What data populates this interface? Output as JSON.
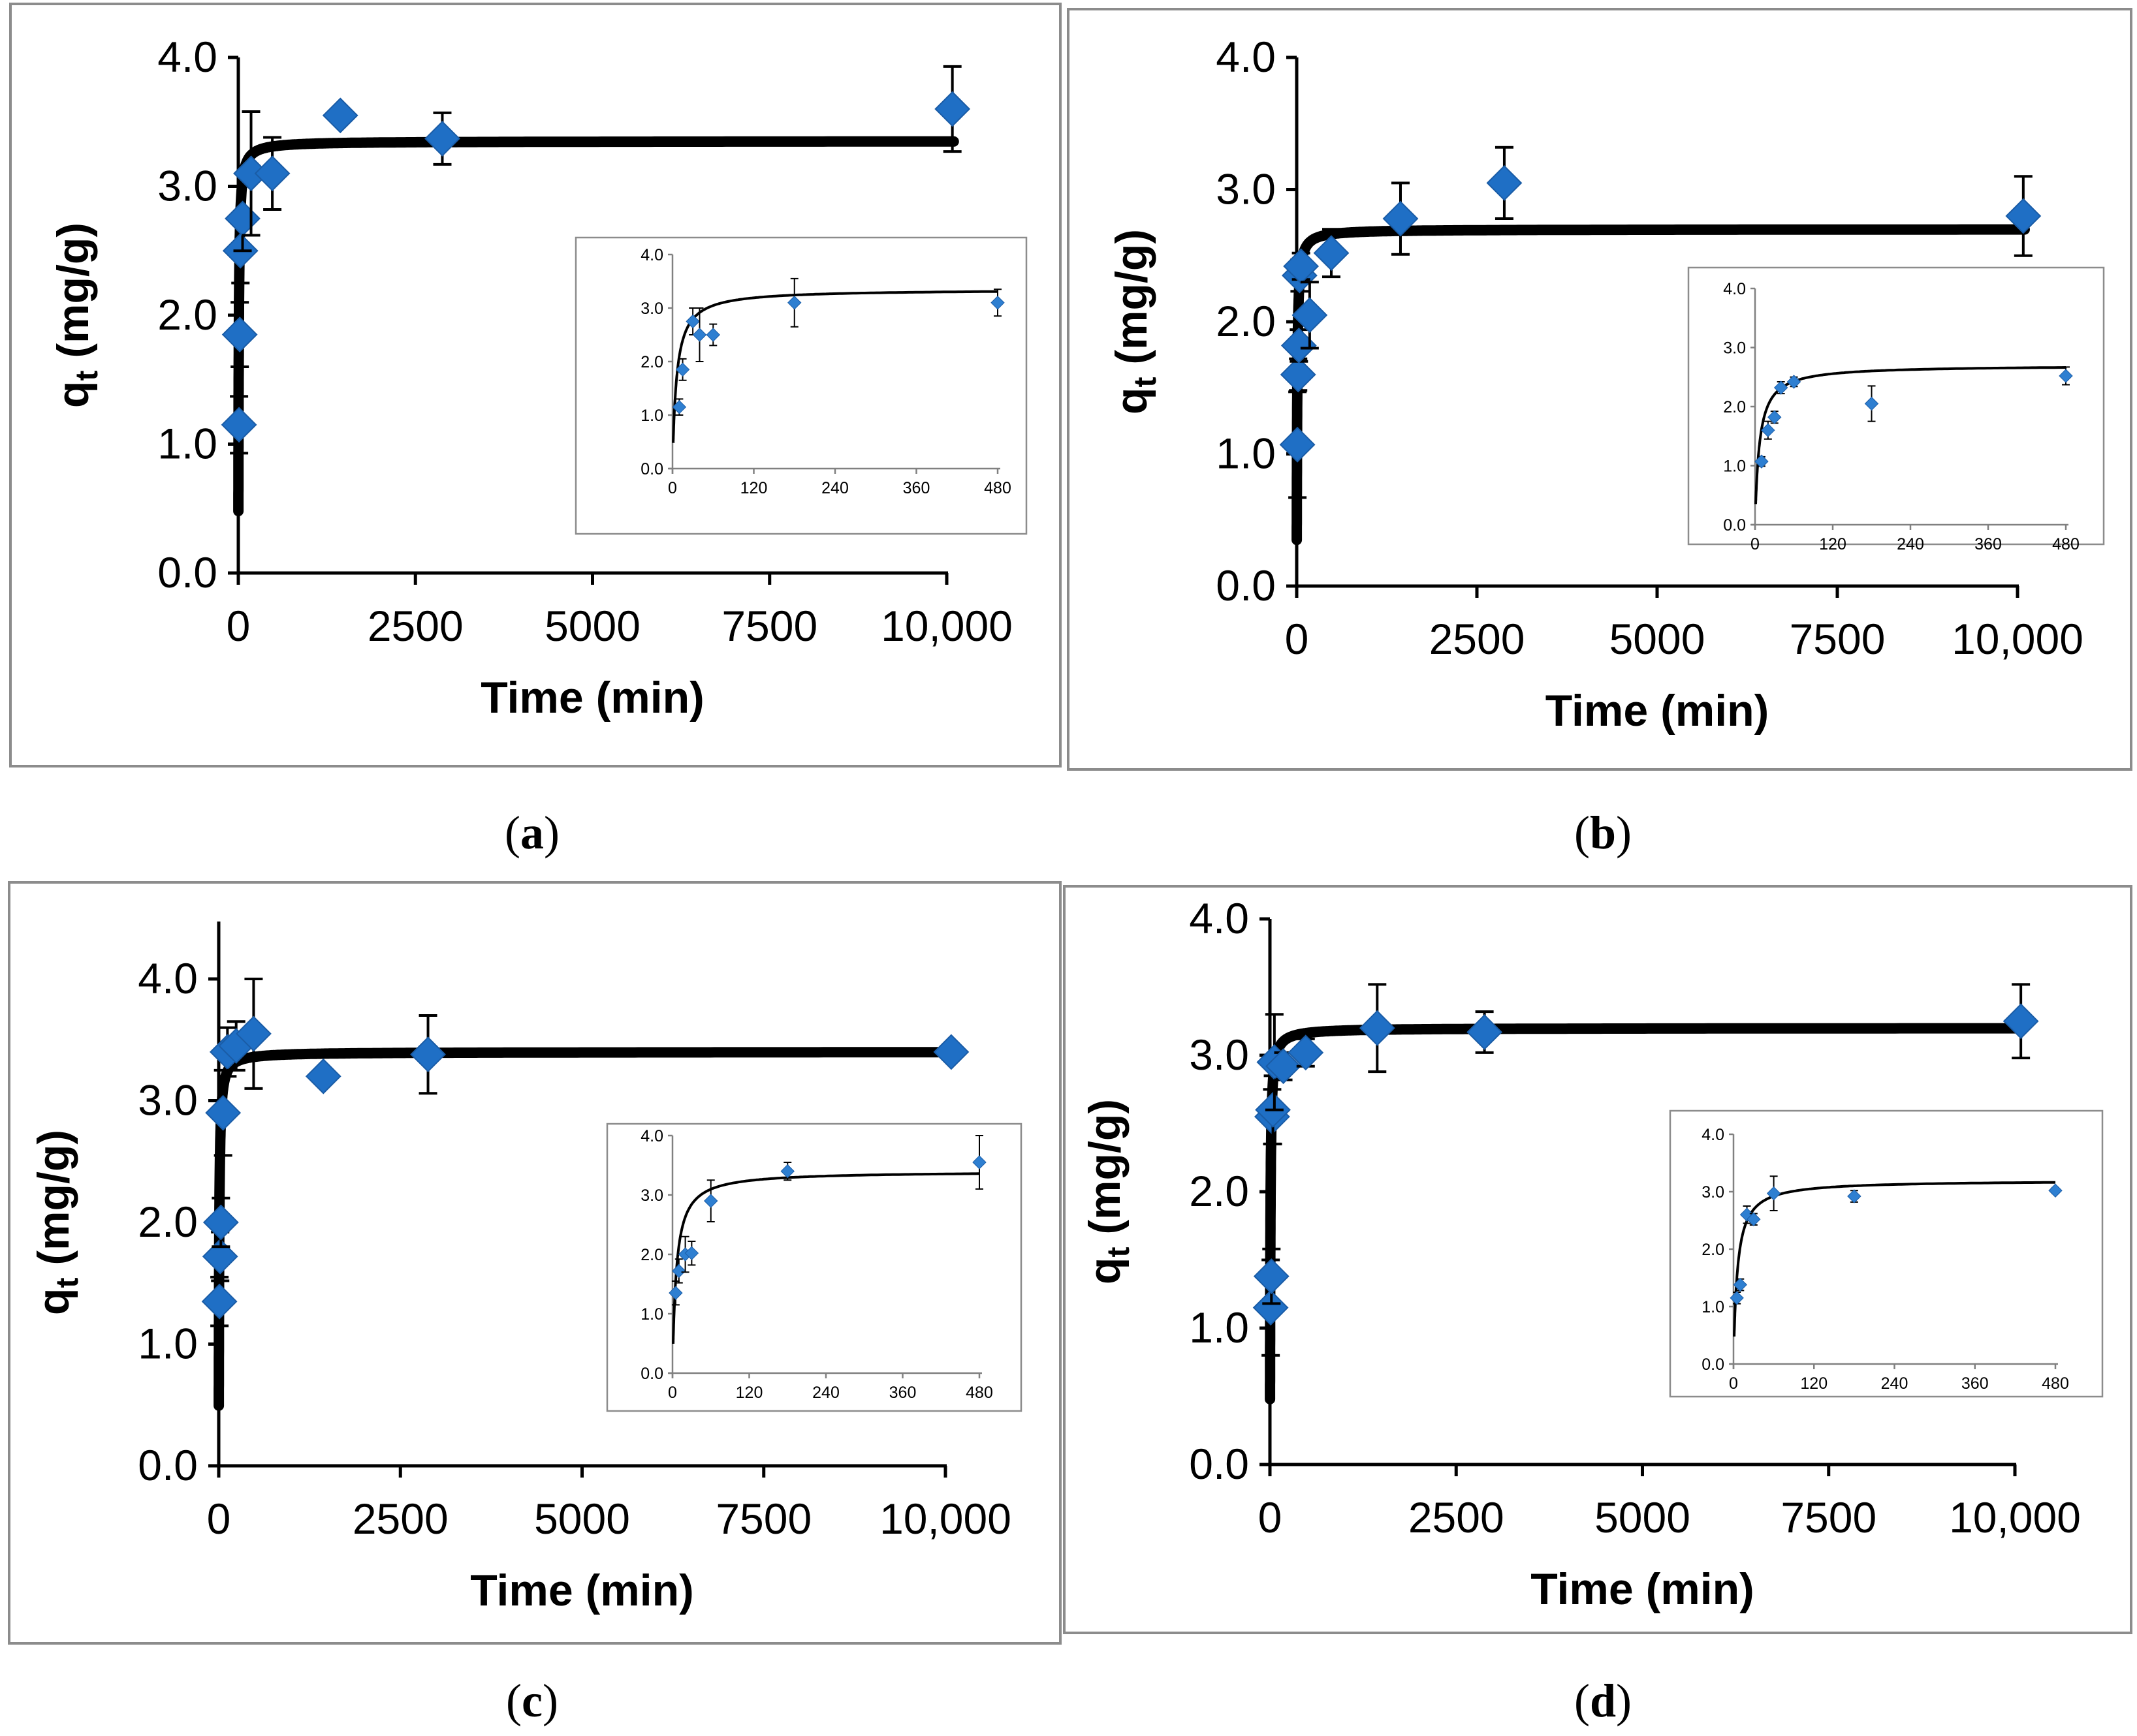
{
  "chart_data": [
    {
      "panel": "a",
      "type": "scatter",
      "xlabel": "Time (min)",
      "ylabel_main": "q",
      "ylabel_sub": "t",
      "ylabel_unit": " (mg/g)",
      "xlim": [
        0,
        10000
      ],
      "ylim": [
        0,
        4.0
      ],
      "x_ticks": [
        0,
        2500,
        5000,
        7500,
        10000
      ],
      "x_tick_labels": [
        "0",
        "2500",
        "5000",
        "7500",
        "10,000"
      ],
      "y_ticks": [
        0,
        1,
        2,
        3,
        4
      ],
      "y_tick_labels": [
        "0.0",
        "1.0",
        "2.0",
        "3.0",
        "4.0"
      ],
      "model": {
        "qe": 3.35,
        "k": 0.05
      },
      "points": [
        {
          "x": 10,
          "y": 1.15,
          "err": 0.22
        },
        {
          "x": 20,
          "y": 1.85,
          "err": 0.25
        },
        {
          "x": 30,
          "y": 2.5,
          "err": 0.25
        },
        {
          "x": 60,
          "y": 2.75,
          "err": 0.25
        },
        {
          "x": 180,
          "y": 3.1,
          "err": 0.48
        },
        {
          "x": 480,
          "y": 3.1,
          "err": 0.28
        },
        {
          "x": 1440,
          "y": 3.55,
          "err": 0
        },
        {
          "x": 2880,
          "y": 3.37,
          "err": 0.2
        },
        {
          "x": 10080,
          "y": 3.6,
          "err": 0.33
        }
      ],
      "inset": {
        "xlim": [
          0,
          480
        ],
        "ylim": [
          0,
          4.0
        ],
        "x_ticks": [
          0,
          120,
          240,
          360,
          480
        ],
        "x_tick_labels": [
          "0",
          "120",
          "240",
          "360",
          "480"
        ],
        "y_ticks": [
          0,
          1,
          2,
          3,
          4
        ],
        "y_tick_labels": [
          "0.0",
          "1.0",
          "2.0",
          "3.0",
          "4.0"
        ],
        "points": [
          {
            "x": 10,
            "y": 1.15,
            "err": 0.15
          },
          {
            "x": 15,
            "y": 1.85,
            "err": 0.2
          },
          {
            "x": 30,
            "y": 2.75,
            "err": 0.25
          },
          {
            "x": 40,
            "y": 2.5,
            "err": 0.5
          },
          {
            "x": 60,
            "y": 2.5,
            "err": 0.2
          },
          {
            "x": 180,
            "y": 3.1,
            "err": 0.45
          },
          {
            "x": 480,
            "y": 3.1,
            "err": 0.25
          }
        ]
      }
    },
    {
      "panel": "b",
      "type": "scatter",
      "xlabel": "Time (min)",
      "ylabel_main": "q",
      "ylabel_sub": "t",
      "ylabel_unit": " (mg/g)",
      "xlim": [
        0,
        10000
      ],
      "ylim": [
        0,
        4.0
      ],
      "x_ticks": [
        0,
        2500,
        5000,
        7500,
        10000
      ],
      "x_tick_labels": [
        "0",
        "2500",
        "5000",
        "7500",
        "10,000"
      ],
      "y_ticks": [
        0,
        1,
        2,
        3,
        4
      ],
      "y_tick_labels": [
        "0.0",
        "1.0",
        "2.0",
        "3.0",
        "4.0"
      ],
      "model": {
        "qe": 2.7,
        "k": 0.055
      },
      "points": [
        {
          "x": 10,
          "y": 1.07,
          "err": 0.4
        },
        {
          "x": 20,
          "y": 1.6,
          "err": 0.12
        },
        {
          "x": 30,
          "y": 1.82,
          "err": 0.12
        },
        {
          "x": 40,
          "y": 2.35,
          "err": 0.12
        },
        {
          "x": 60,
          "y": 2.42,
          "err": 0.1
        },
        {
          "x": 180,
          "y": 2.05,
          "err": 0.25
        },
        {
          "x": 480,
          "y": 2.52,
          "err": 0.18
        },
        {
          "x": 1440,
          "y": 2.78,
          "err": 0.27
        },
        {
          "x": 2880,
          "y": 3.05,
          "err": 0.27
        },
        {
          "x": 10080,
          "y": 2.8,
          "err": 0.3
        }
      ],
      "inset": {
        "xlim": [
          0,
          480
        ],
        "ylim": [
          0,
          4.0
        ],
        "x_ticks": [
          0,
          120,
          240,
          360,
          480
        ],
        "x_tick_labels": [
          "0",
          "120",
          "240",
          "360",
          "480"
        ],
        "y_ticks": [
          0,
          1,
          2,
          3,
          4
        ],
        "y_tick_labels": [
          "0.0",
          "1.0",
          "2.0",
          "3.0",
          "4.0"
        ],
        "points": [
          {
            "x": 10,
            "y": 1.07,
            "err": 0.08
          },
          {
            "x": 20,
            "y": 1.6,
            "err": 0.15
          },
          {
            "x": 30,
            "y": 1.82,
            "err": 0.1
          },
          {
            "x": 40,
            "y": 2.32,
            "err": 0.1
          },
          {
            "x": 60,
            "y": 2.42,
            "err": 0.08
          },
          {
            "x": 180,
            "y": 2.05,
            "err": 0.3
          },
          {
            "x": 480,
            "y": 2.52,
            "err": 0.15
          }
        ]
      }
    },
    {
      "panel": "c",
      "type": "scatter",
      "xlabel": "Time (min)",
      "ylabel_main": "q",
      "ylabel_sub": "t",
      "ylabel_unit": " (mg/g)",
      "xlim": [
        0,
        10000
      ],
      "ylim": [
        0,
        4.5
      ],
      "x_ticks": [
        0,
        2500,
        5000,
        7500,
        10000
      ],
      "x_tick_labels": [
        "0",
        "2500",
        "5000",
        "7500",
        "10,000"
      ],
      "y_ticks": [
        0,
        1,
        2,
        3,
        4
      ],
      "y_tick_labels": [
        "0.0",
        "1.0",
        "2.0",
        "3.0",
        "4.0"
      ],
      "model": {
        "qe": 3.4,
        "k": 0.05
      },
      "points": [
        {
          "x": 10,
          "y": 1.35,
          "err": 0.2
        },
        {
          "x": 20,
          "y": 1.72,
          "err": 0.2
        },
        {
          "x": 30,
          "y": 2.0,
          "err": 0.2
        },
        {
          "x": 60,
          "y": 2.9,
          "err": 0.35
        },
        {
          "x": 120,
          "y": 3.4,
          "err": 0.2
        },
        {
          "x": 240,
          "y": 3.45,
          "err": 0.2
        },
        {
          "x": 480,
          "y": 3.55,
          "err": 0.45
        },
        {
          "x": 1440,
          "y": 3.2,
          "err": 0
        },
        {
          "x": 2880,
          "y": 3.38,
          "err": 0.32
        },
        {
          "x": 10080,
          "y": 3.4,
          "err": 0
        }
      ],
      "inset": {
        "xlim": [
          0,
          480
        ],
        "ylim": [
          0,
          4.0
        ],
        "x_ticks": [
          0,
          120,
          240,
          360,
          480
        ],
        "x_tick_labels": [
          "0",
          "120",
          "240",
          "360",
          "480"
        ],
        "y_ticks": [
          0,
          1,
          2,
          3,
          4
        ],
        "y_tick_labels": [
          "0.0",
          "1.0",
          "2.0",
          "3.0",
          "4.0"
        ],
        "points": [
          {
            "x": 5,
            "y": 1.35,
            "err": 0.2
          },
          {
            "x": 10,
            "y": 1.72,
            "err": 0.2
          },
          {
            "x": 20,
            "y": 2.0,
            "err": 0.3
          },
          {
            "x": 30,
            "y": 2.02,
            "err": 0.2
          },
          {
            "x": 60,
            "y": 2.9,
            "err": 0.35
          },
          {
            "x": 180,
            "y": 3.4,
            "err": 0.15
          },
          {
            "x": 480,
            "y": 3.55,
            "err": 0.45
          }
        ]
      }
    },
    {
      "panel": "d",
      "type": "scatter",
      "xlabel": "Time (min)",
      "ylabel_main": "q",
      "ylabel_sub": "t",
      "ylabel_unit": " (mg/g)",
      "xlim": [
        0,
        10000
      ],
      "ylim": [
        0,
        4.0
      ],
      "x_ticks": [
        0,
        2500,
        5000,
        7500,
        10000
      ],
      "x_tick_labels": [
        "0",
        "2500",
        "5000",
        "7500",
        "10,000"
      ],
      "y_ticks": [
        0,
        1,
        2,
        3,
        4
      ],
      "y_tick_labels": [
        "0.0",
        "1.0",
        "2.0",
        "3.0",
        "4.0"
      ],
      "model": {
        "qe": 3.2,
        "k": 0.055
      },
      "points": [
        {
          "x": 10,
          "y": 1.15,
          "err": 0.35
        },
        {
          "x": 20,
          "y": 1.38,
          "err": 0.2
        },
        {
          "x": 30,
          "y": 2.55,
          "err": 0.2
        },
        {
          "x": 40,
          "y": 2.6,
          "err": 0.25
        },
        {
          "x": 60,
          "y": 2.95,
          "err": 0.35
        },
        {
          "x": 180,
          "y": 2.92,
          "err": 0.1
        },
        {
          "x": 480,
          "y": 3.02,
          "err": 0.1
        },
        {
          "x": 1440,
          "y": 3.2,
          "err": 0.32
        },
        {
          "x": 2880,
          "y": 3.17,
          "err": 0.15
        },
        {
          "x": 10080,
          "y": 3.25,
          "err": 0.27
        }
      ],
      "inset": {
        "xlim": [
          0,
          480
        ],
        "ylim": [
          0,
          4.0
        ],
        "x_ticks": [
          0,
          120,
          240,
          360,
          480
        ],
        "x_tick_labels": [
          "0",
          "120",
          "240",
          "360",
          "480"
        ],
        "y_ticks": [
          0,
          1,
          2,
          3,
          4
        ],
        "y_tick_labels": [
          "0.0",
          "1.0",
          "2.0",
          "3.0",
          "4.0"
        ],
        "points": [
          {
            "x": 5,
            "y": 1.15,
            "err": 0.1
          },
          {
            "x": 10,
            "y": 1.38,
            "err": 0.1
          },
          {
            "x": 20,
            "y": 2.6,
            "err": 0.15
          },
          {
            "x": 30,
            "y": 2.52,
            "err": 0.1
          },
          {
            "x": 60,
            "y": 2.97,
            "err": 0.3
          },
          {
            "x": 180,
            "y": 2.92,
            "err": 0.1
          },
          {
            "x": 480,
            "y": 3.02,
            "err": 0.05
          }
        ]
      }
    }
  ],
  "panel_labels": [
    {
      "open": "(",
      "letter": "a",
      "close": ")"
    },
    {
      "open": "(",
      "letter": "b",
      "close": ")"
    },
    {
      "open": "(",
      "letter": "c",
      "close": ")"
    },
    {
      "open": "(",
      "letter": "d",
      "close": ")"
    }
  ],
  "colors": {
    "marker": "#1f6fc5",
    "line": "#000000",
    "frame": "#8c8c8c"
  }
}
